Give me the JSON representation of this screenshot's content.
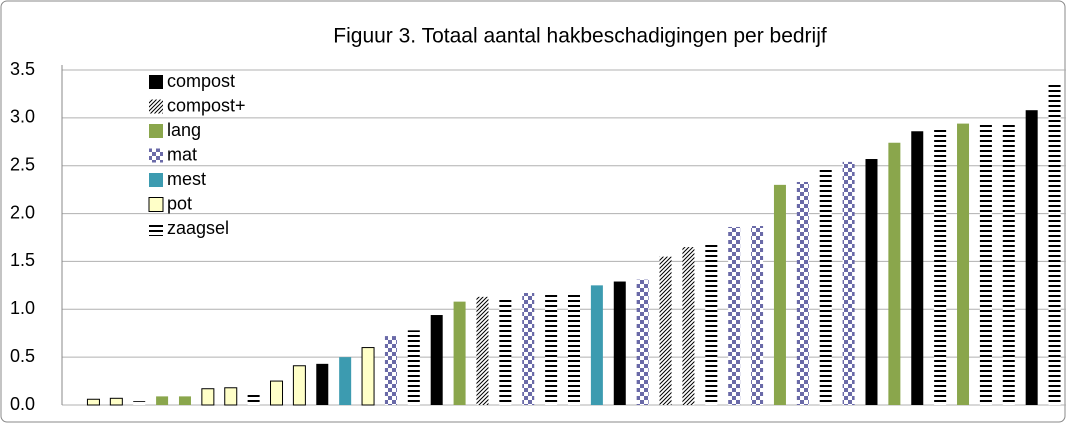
{
  "chart_data": {
    "type": "bar",
    "title": "Figuur 3. Totaal aantal hakbeschadigingen per bedrijf",
    "categories": [
      null,
      null,
      null,
      null,
      null,
      null,
      null,
      null,
      null,
      null,
      null,
      null,
      null,
      null,
      null,
      null,
      null,
      null,
      null,
      null,
      null,
      null,
      null,
      null,
      null,
      null,
      null,
      null,
      null,
      null,
      null,
      null,
      null,
      null,
      null,
      null,
      null,
      null,
      null,
      null,
      null,
      null,
      null
    ],
    "ylim": [
      0,
      3.5
    ],
    "yticks": [
      {
        "value": 0,
        "label": "0.0"
      },
      0.5,
      {
        "value": 1,
        "label": "1.0"
      },
      1.5,
      {
        "value": 2,
        "label": "2.0"
      },
      2.5,
      {
        "value": 3,
        "label": "3.0"
      },
      3.5
    ],
    "grid": true,
    "legend": "upper-left",
    "series": [
      {
        "name": "compost",
        "color": "#000000",
        "pattern": "solid",
        "values": [
          null,
          null,
          null,
          null,
          null,
          null,
          null,
          null,
          null,
          null,
          0.43,
          null,
          null,
          null,
          null,
          0.94,
          null,
          null,
          null,
          null,
          null,
          null,
          null,
          1.29,
          null,
          null,
          null,
          null,
          null,
          null,
          null,
          null,
          null,
          null,
          2.57,
          null,
          2.86,
          null,
          null,
          null,
          null,
          3.08,
          null
        ]
      },
      {
        "name": "compost+",
        "color": "#000000",
        "pattern": "diagonal",
        "values": [
          null,
          null,
          null,
          null,
          null,
          null,
          null,
          null,
          null,
          null,
          null,
          null,
          null,
          null,
          null,
          null,
          null,
          1.13,
          null,
          null,
          null,
          null,
          null,
          null,
          null,
          1.55,
          1.65,
          null,
          null,
          null,
          null,
          null,
          null,
          null,
          null,
          null,
          null,
          null,
          null,
          null,
          null,
          null,
          null
        ]
      },
      {
        "name": "lang",
        "color": "#8aa64c",
        "pattern": "solid",
        "values": [
          null,
          null,
          null,
          0.09,
          0.09,
          null,
          null,
          null,
          null,
          null,
          null,
          null,
          null,
          null,
          null,
          null,
          1.08,
          null,
          null,
          null,
          null,
          null,
          null,
          null,
          null,
          null,
          null,
          null,
          null,
          null,
          2.3,
          null,
          null,
          null,
          null,
          2.74,
          null,
          null,
          2.94,
          null,
          null,
          null,
          null
        ]
      },
      {
        "name": "mat",
        "color": "#6a6aa8",
        "pattern": "checker",
        "values": [
          null,
          null,
          null,
          null,
          null,
          null,
          null,
          null,
          null,
          null,
          null,
          null,
          null,
          0.72,
          null,
          null,
          null,
          null,
          null,
          1.17,
          null,
          null,
          null,
          null,
          1.31,
          null,
          null,
          null,
          1.86,
          1.87,
          null,
          2.33,
          null,
          2.54,
          null,
          null,
          null,
          null,
          null,
          null,
          null,
          null,
          null
        ]
      },
      {
        "name": "mest",
        "color": "#3c9bb0",
        "pattern": "solid",
        "values": [
          null,
          null,
          null,
          null,
          null,
          null,
          null,
          null,
          null,
          null,
          null,
          0.5,
          null,
          null,
          null,
          null,
          null,
          null,
          null,
          null,
          null,
          null,
          1.25,
          null,
          null,
          null,
          null,
          null,
          null,
          null,
          null,
          null,
          null,
          null,
          null,
          null,
          null,
          null,
          null,
          null,
          null,
          null,
          null
        ]
      },
      {
        "name": "pot",
        "color": "#ffffc8",
        "pattern": "outlined",
        "values": [
          0.06,
          0.07,
          null,
          null,
          null,
          0.17,
          0.18,
          null,
          0.25,
          0.41,
          null,
          null,
          0.6,
          null,
          null,
          null,
          null,
          null,
          null,
          null,
          null,
          null,
          null,
          null,
          null,
          null,
          null,
          null,
          null,
          null,
          null,
          null,
          null,
          null,
          null,
          null,
          null,
          null,
          null,
          null,
          null,
          null,
          null
        ]
      },
      {
        "name": "zaagsel",
        "color": "#000000",
        "pattern": "hstripe",
        "values": [
          null,
          null,
          0.04,
          null,
          null,
          null,
          null,
          0.13,
          null,
          null,
          null,
          null,
          null,
          null,
          0.78,
          null,
          null,
          null,
          1.1,
          null,
          1.17,
          1.17,
          null,
          null,
          null,
          null,
          null,
          1.69,
          null,
          null,
          null,
          null,
          2.47,
          null,
          null,
          null,
          null,
          2.88,
          null,
          2.95,
          2.95,
          null,
          3.35
        ]
      }
    ]
  }
}
